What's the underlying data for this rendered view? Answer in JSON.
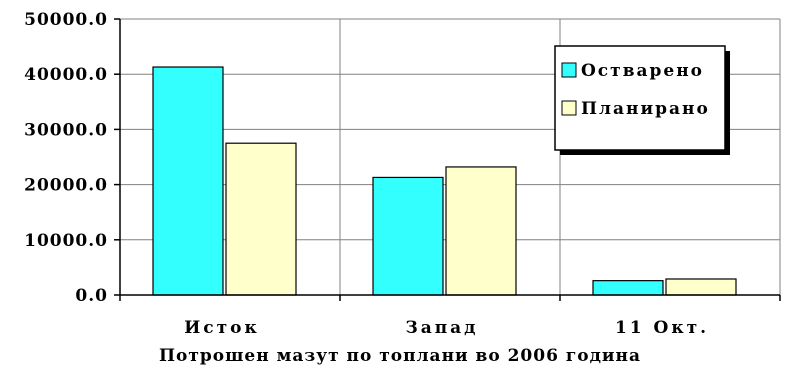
{
  "chart_data": {
    "type": "bar",
    "categories": [
      "Исток",
      "Запад",
      "11 Окт."
    ],
    "series": [
      {
        "name": "Остварено",
        "values": [
          41300,
          21300,
          2600
        ],
        "color": "#33ffff"
      },
      {
        "name": "Планирано",
        "values": [
          27500,
          23200,
          2900
        ],
        "color": "#ffffcc"
      }
    ],
    "xlabel": "Потрошен мазут по топлани во 2006 година",
    "ylabel": "",
    "ylim": [
      0,
      50000
    ],
    "yticks": [
      "0.0",
      "10000.0",
      "20000.0",
      "30000.0",
      "40000.0",
      "50000.0"
    ],
    "grid": true,
    "legend_position": "top-right"
  }
}
